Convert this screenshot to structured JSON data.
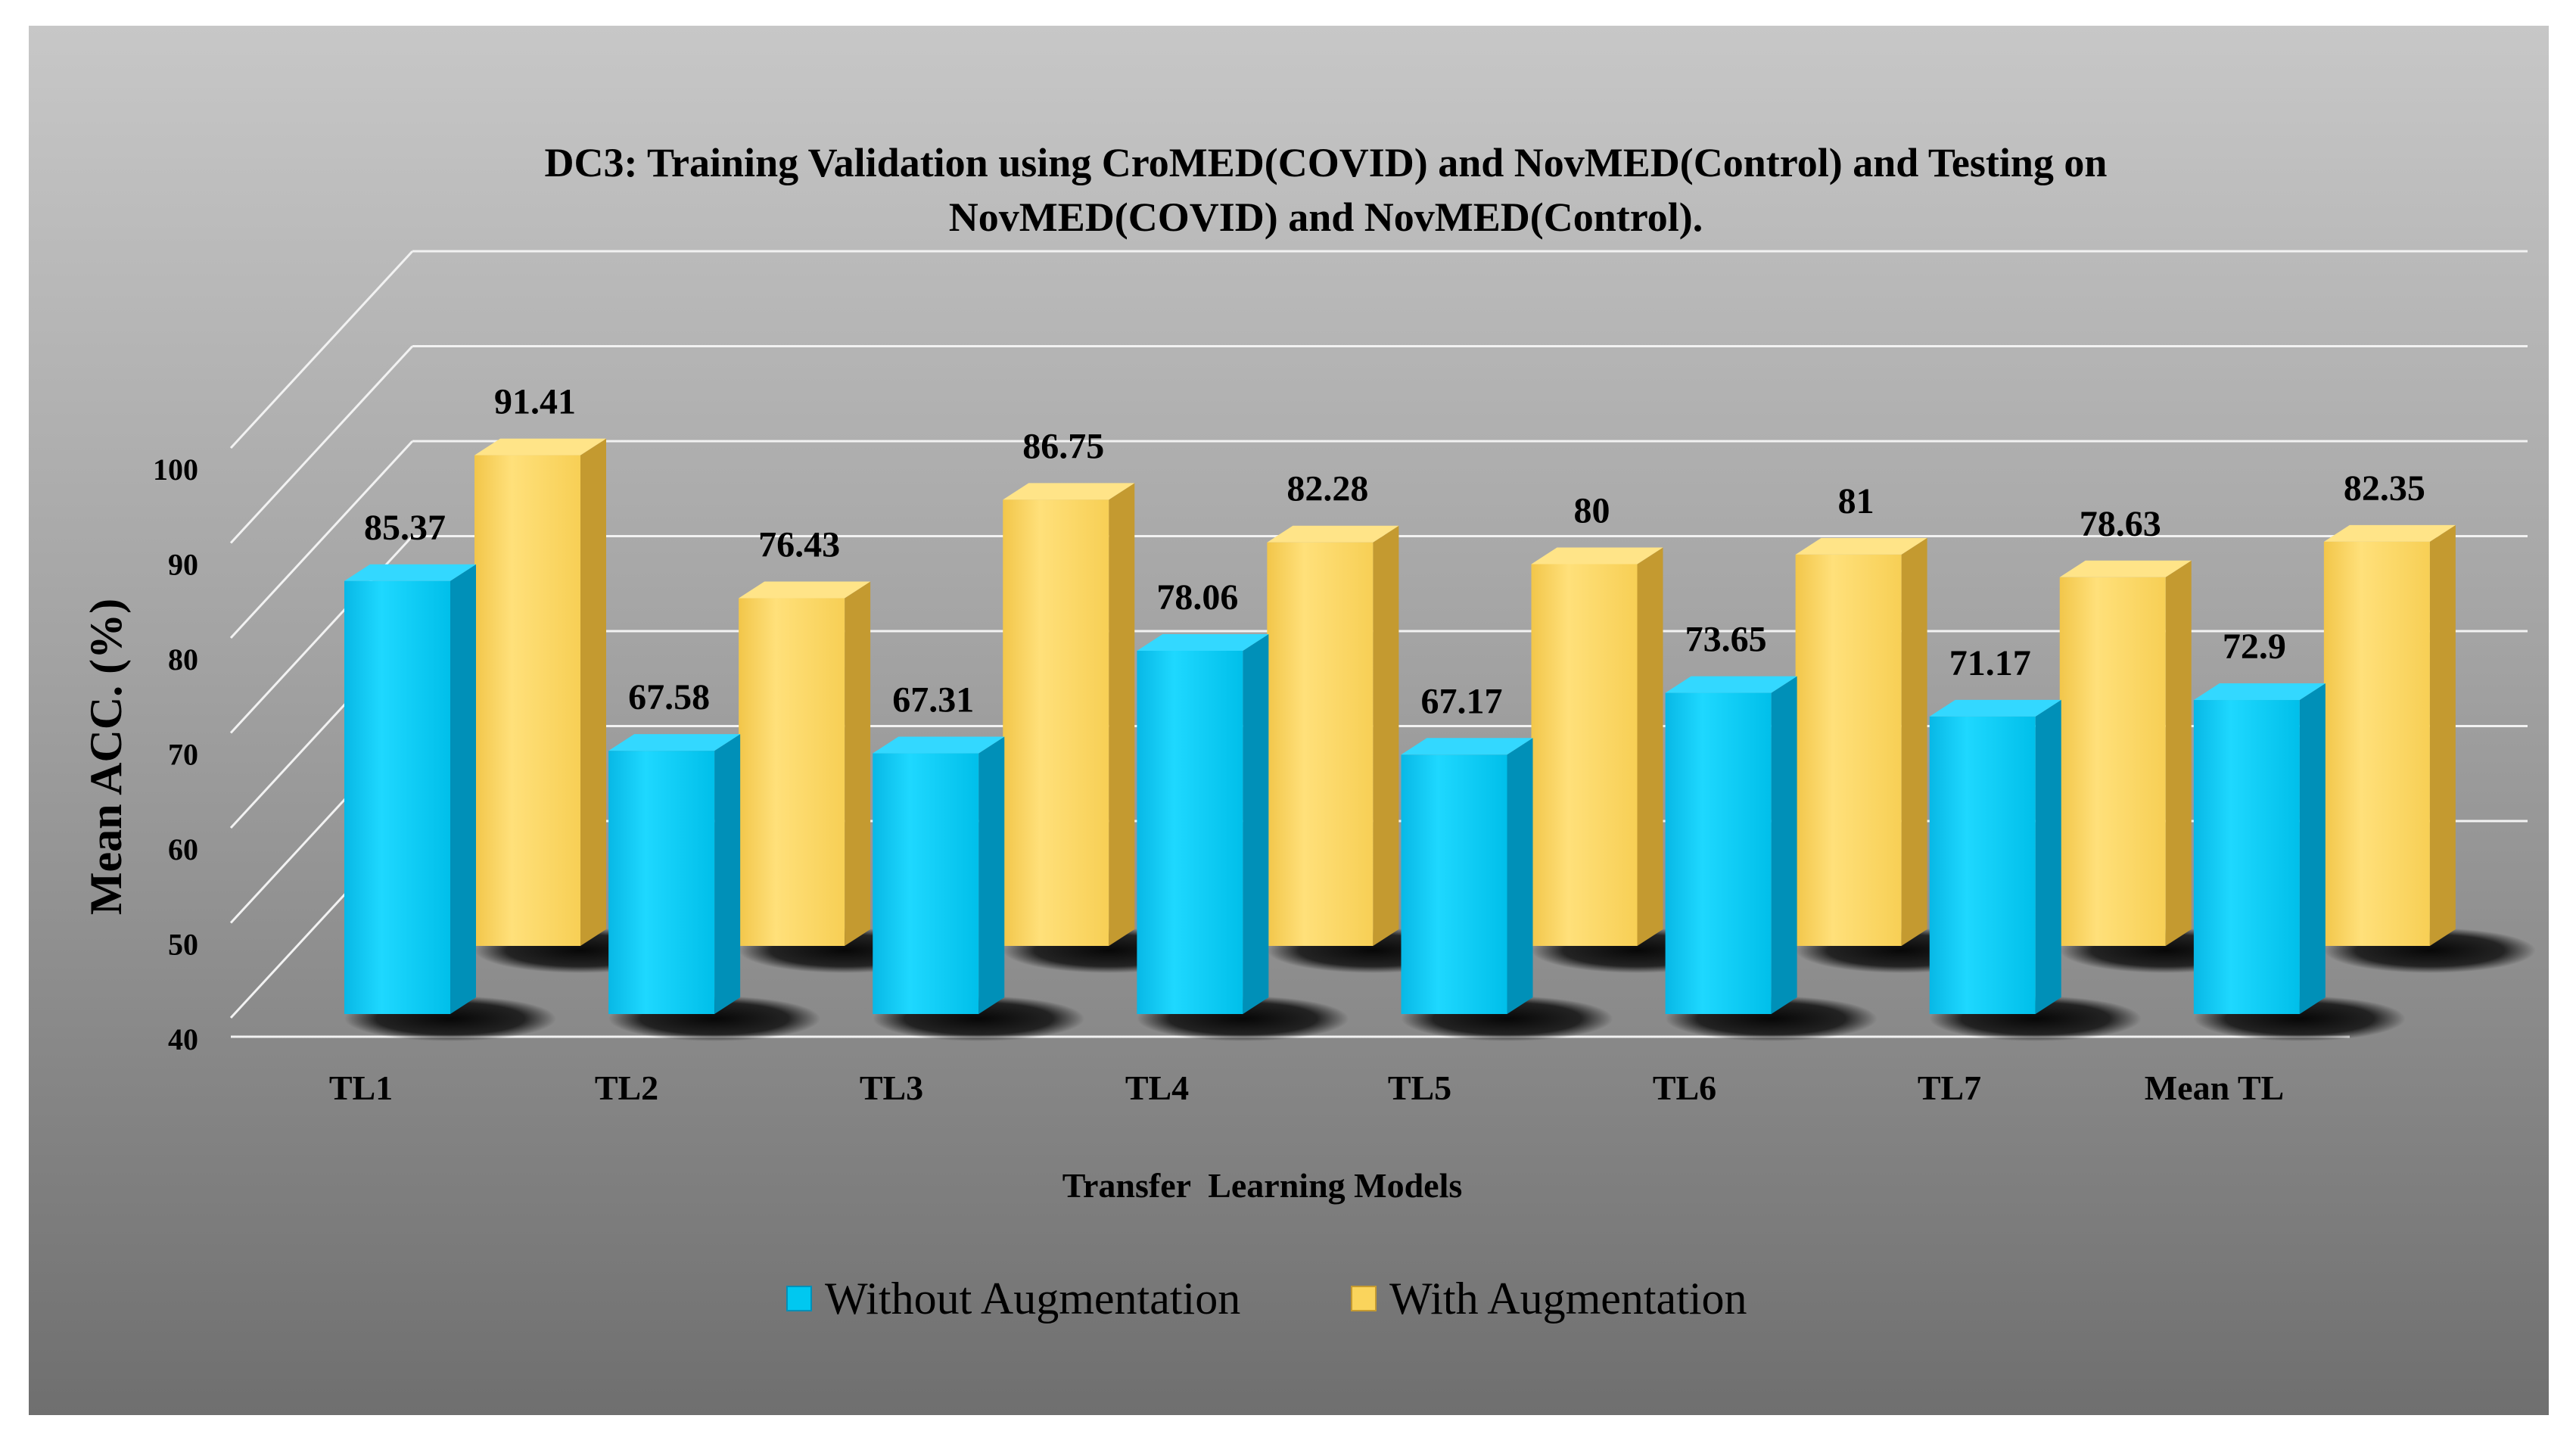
{
  "chart_data": {
    "type": "bar",
    "title_lines": [
      "DC3: Training Validation using CroMED(COVID) and NovMED(Control) and Testing on",
      "NovMED(COVID) and NovMED(Control)."
    ],
    "xlabel": "Transfer  Learning Models",
    "ylabel": "Mean ACC. (%)",
    "ylim": [
      40,
      100
    ],
    "yticks": [
      "40",
      "50",
      "60",
      "70",
      "80",
      "90",
      "100"
    ],
    "grid": true,
    "legend_position": "bottom-center",
    "categories": [
      "TL1",
      "TL2",
      "TL3",
      "TL4",
      "TL5",
      "TL6",
      "TL7",
      "Mean TL"
    ],
    "series": [
      {
        "name": "Without Augmentation",
        "values": [
          85.37,
          67.58,
          67.31,
          78.06,
          67.17,
          73.65,
          71.17,
          72.9
        ],
        "labels": [
          "85.37",
          "67.58",
          "67.31",
          "78.06",
          "67.17",
          "73.65",
          "71.17",
          "72.9"
        ]
      },
      {
        "name": "With Augmentation",
        "values": [
          91.41,
          76.43,
          86.75,
          82.28,
          80,
          81,
          78.63,
          82.35
        ],
        "labels": [
          "91.41",
          "76.43",
          "86.75",
          "82.28",
          "80",
          "81",
          "78.63",
          "82.35"
        ]
      }
    ],
    "colors": {
      "cyan_front": "#00C8F0",
      "cyan_side": "#0090B8",
      "cyan_top": "#33D8FF",
      "yellow_front": "#FAD45C",
      "yellow_side": "#C49A30",
      "yellow_top": "#FFE488",
      "wall_top": "#c7c7c7",
      "wall_bottom": "#6f6f6f"
    }
  }
}
